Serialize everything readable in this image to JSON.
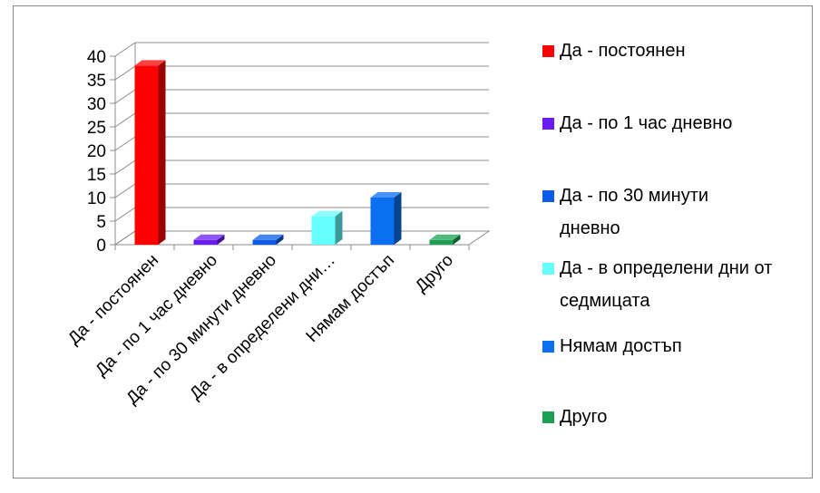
{
  "chart_data": {
    "type": "bar",
    "categories": [
      "Да - постоянен",
      "Да - по 1 час дневно",
      "Да - по 30 минути дневно",
      "Да - в определени дни…",
      "Нямам достъп",
      "Друго"
    ],
    "values": [
      38,
      1,
      1,
      6,
      10,
      1
    ],
    "colors": [
      "#ff0000",
      "#6a1cf0",
      "#0a5ce8",
      "#66ffff",
      "#0a6ff0",
      "#1aa050"
    ],
    "ylim": [
      0,
      40
    ],
    "yticks": [
      "0",
      "5",
      "10",
      "15",
      "20",
      "25",
      "30",
      "35",
      "40"
    ],
    "grid": true,
    "legend_position": "right",
    "legend": [
      {
        "label": "Да - постоянен",
        "color": "#ff0000"
      },
      {
        "label": "Да - по 1 час дневно",
        "color": "#6a1cf0"
      },
      {
        "label": "Да - по 30 минути дневно",
        "color": "#0a5ce8"
      },
      {
        "label": "Да - в определени дни от седмицата",
        "color": "#66ffff"
      },
      {
        "label": "Нямам достъп",
        "color": "#0a6ff0"
      },
      {
        "label": "Друго",
        "color": "#1aa050"
      }
    ]
  }
}
